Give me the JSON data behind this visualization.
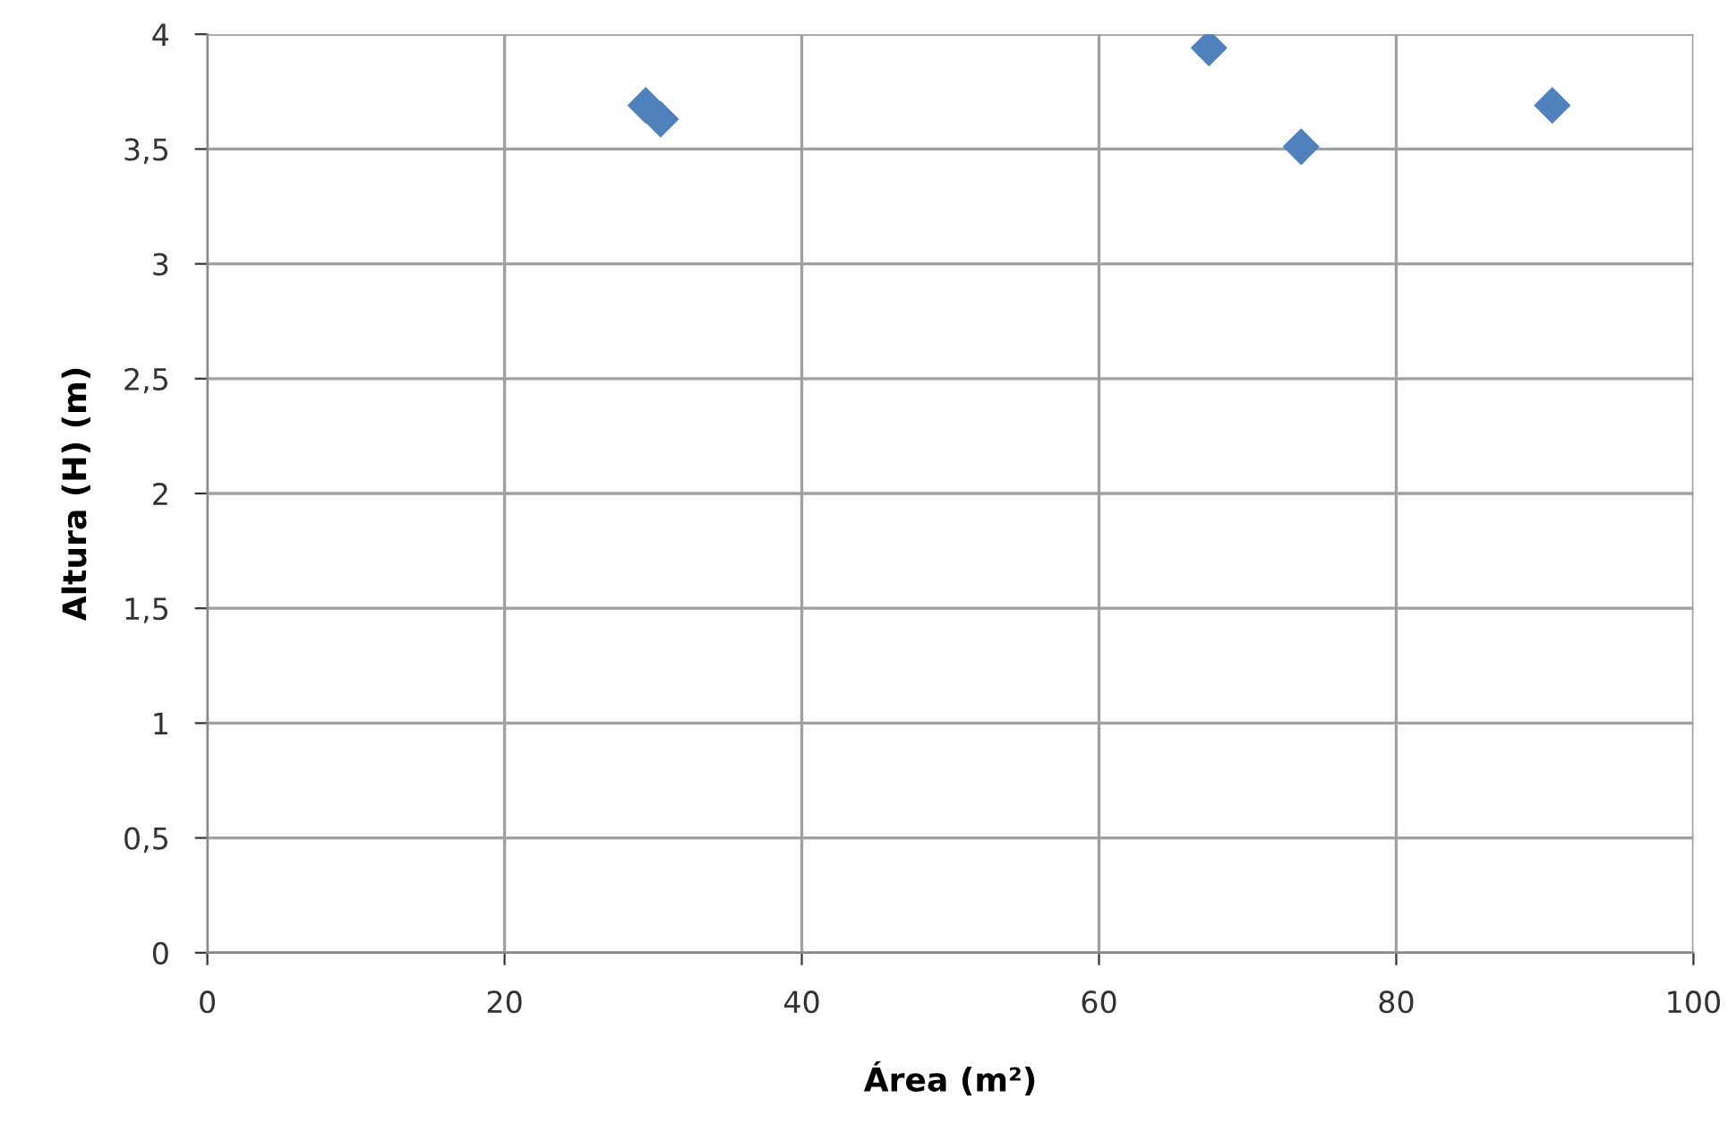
{
  "chart_data": {
    "type": "scatter",
    "xlabel": "Área (m²)",
    "ylabel": "Altura (H) (m)",
    "x": [
      29.5,
      30.5,
      67.4,
      73.6,
      90.5
    ],
    "values": [
      3.69,
      3.63,
      3.94,
      3.51,
      3.69
    ],
    "color": "#4f81bd",
    "marker": "diamond",
    "xlim": [
      0,
      100
    ],
    "xticks": [
      0,
      20,
      40,
      60,
      80,
      100
    ],
    "ylim": [
      0,
      4
    ],
    "yticks": [
      0,
      {
        "value": 0.5,
        "label": "0,5"
      },
      1,
      {
        "value": 1.5,
        "label": "1,5"
      },
      2,
      {
        "value": 2.5,
        "label": "2,5"
      },
      3,
      {
        "value": 3.5,
        "label": "3,5"
      },
      4
    ],
    "grid": true
  }
}
